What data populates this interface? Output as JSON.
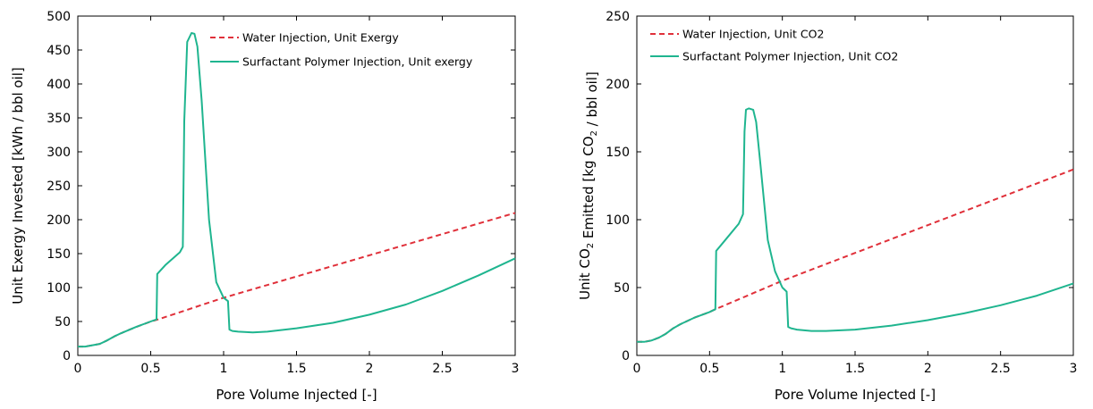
{
  "chart_data": [
    {
      "type": "line",
      "xlabel": "Pore Volume Injected [-]",
      "ylabel": "Unit Exergy Invested [kWh / bbl oil]",
      "xlim": [
        0,
        3
      ],
      "ylim": [
        0,
        500
      ],
      "xticks": [
        "0",
        "0.5",
        "1",
        "1.5",
        "2",
        "2.5",
        "3"
      ],
      "yticks": [
        "0",
        "50",
        "100",
        "150",
        "200",
        "250",
        "300",
        "350",
        "400",
        "450",
        "500"
      ],
      "grid": false,
      "legend_position": "top-right",
      "series": [
        {
          "name": "Water Injection, Unit Exergy",
          "color": "#e0303a",
          "style": "dashed",
          "x": [
            0,
            0.05,
            0.1,
            0.15,
            0.2,
            0.25,
            0.3,
            0.4,
            0.5,
            0.55,
            1.0,
            3.0
          ],
          "y": [
            13,
            13,
            15,
            17,
            22,
            28,
            33,
            42,
            50,
            53,
            85,
            210
          ]
        },
        {
          "name": "Surfactant Polymer Injection, Unit exergy",
          "color": "#1fb58f",
          "style": "solid",
          "x": [
            0,
            0.05,
            0.1,
            0.15,
            0.2,
            0.25,
            0.3,
            0.4,
            0.5,
            0.54,
            0.545,
            0.6,
            0.7,
            0.72,
            0.73,
            0.75,
            0.78,
            0.8,
            0.82,
            0.85,
            0.9,
            0.95,
            1.0,
            1.03,
            1.04,
            1.06,
            1.1,
            1.2,
            1.3,
            1.5,
            1.75,
            2.0,
            2.25,
            2.5,
            2.75,
            3.0
          ],
          "y": [
            13,
            13,
            15,
            17,
            22,
            28,
            33,
            42,
            50,
            53,
            120,
            133,
            152,
            160,
            345,
            462,
            475,
            474,
            455,
            375,
            200,
            108,
            85,
            80,
            38,
            36,
            35,
            34,
            35,
            40,
            48,
            60,
            75,
            95,
            118,
            143
          ]
        }
      ]
    },
    {
      "type": "line",
      "xlabel": "Pore Volume Injected [-]",
      "ylabel": "Unit CO2 Emitted  [kg CO2 / bbl oil]",
      "xlim": [
        0,
        3
      ],
      "ylim": [
        0,
        250
      ],
      "xticks": [
        "0",
        "0.5",
        "1",
        "1.5",
        "2",
        "2.5",
        "3"
      ],
      "yticks": [
        "0",
        "50",
        "100",
        "150",
        "200",
        "250"
      ],
      "grid": false,
      "legend_position": "top-left",
      "series": [
        {
          "name": "Water Injection, Unit CO2",
          "color": "#e0303a",
          "style": "dashed",
          "x": [
            0,
            0.05,
            0.1,
            0.15,
            0.2,
            0.25,
            0.3,
            0.4,
            0.5,
            0.54,
            1.0,
            3.0
          ],
          "y": [
            10,
            10,
            11,
            13,
            16,
            20,
            23,
            28,
            32,
            34,
            55,
            137
          ]
        },
        {
          "name": "Surfactant Polymer Injection, Unit CO2",
          "color": "#1fb58f",
          "style": "solid",
          "x": [
            0,
            0.05,
            0.1,
            0.15,
            0.2,
            0.25,
            0.3,
            0.4,
            0.5,
            0.54,
            0.545,
            0.6,
            0.7,
            0.73,
            0.74,
            0.75,
            0.77,
            0.8,
            0.82,
            0.85,
            0.9,
            0.95,
            1.0,
            1.03,
            1.04,
            1.06,
            1.1,
            1.2,
            1.3,
            1.5,
            1.75,
            2.0,
            2.25,
            2.5,
            2.75,
            3.0
          ],
          "y": [
            10,
            10,
            11,
            13,
            16,
            20,
            23,
            28,
            32,
            34,
            77,
            84,
            97,
            104,
            165,
            181,
            182,
            181,
            172,
            140,
            85,
            62,
            50,
            47,
            21,
            20,
            19,
            18,
            18,
            19,
            22,
            26,
            31,
            37,
            44,
            53
          ]
        }
      ]
    }
  ]
}
